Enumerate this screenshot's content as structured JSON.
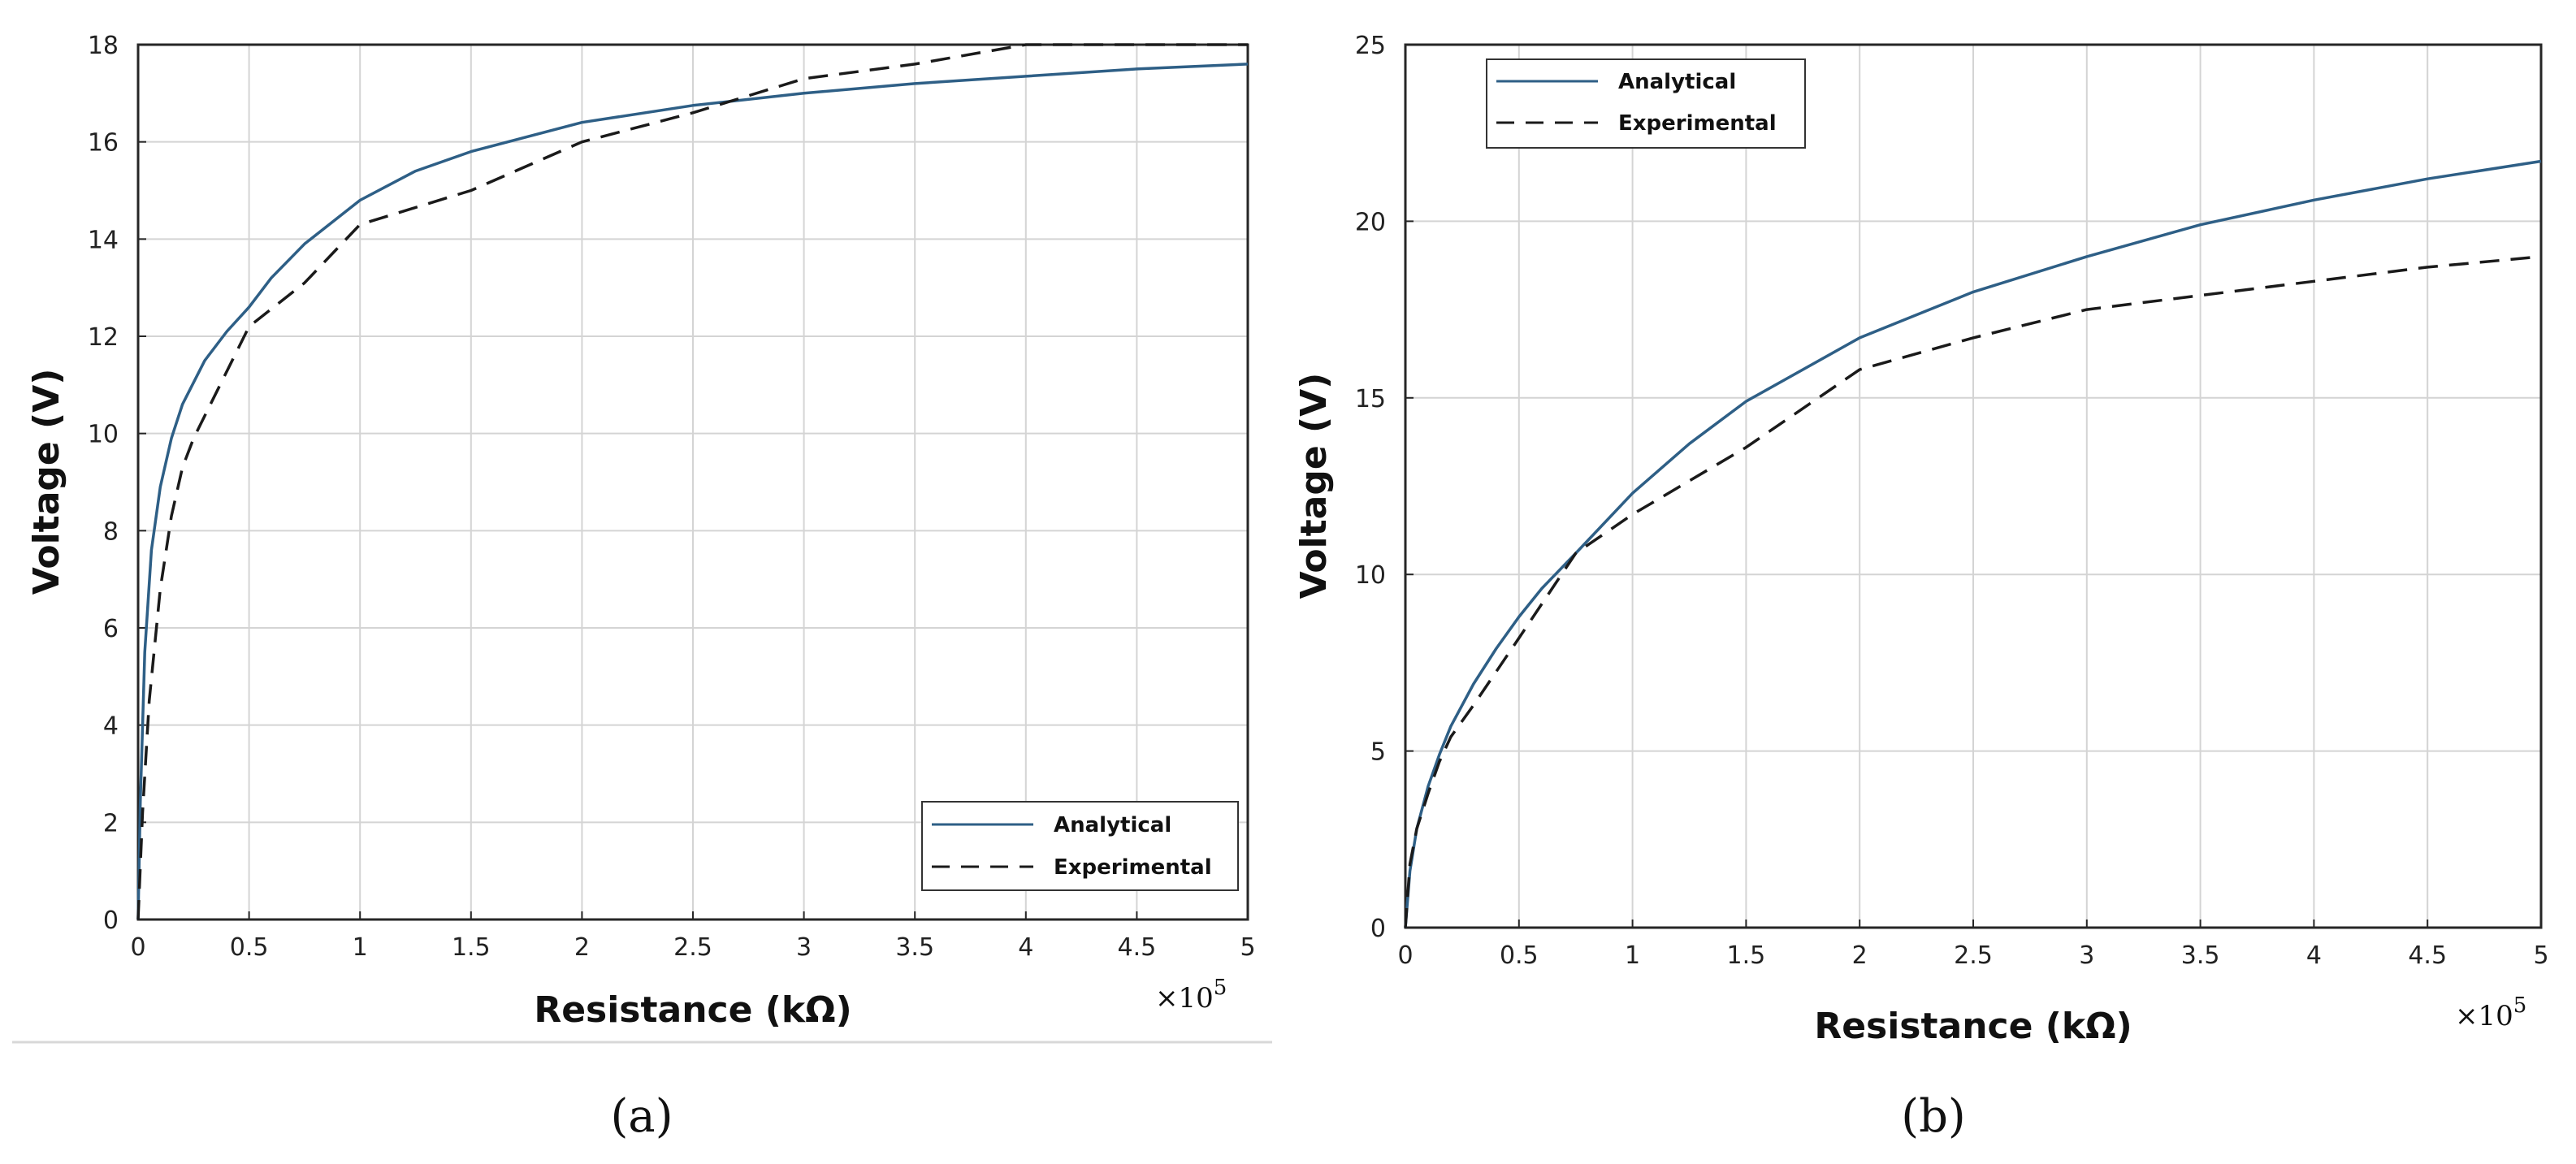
{
  "chart_data": [
    {
      "type": "line",
      "panel": "a",
      "caption": "(a)",
      "xlabel": "Resistance (kΩ)",
      "ylabel": "Voltage (V)",
      "x_multiplier": "×10",
      "x_exponent": "5",
      "xlim": [
        0,
        5
      ],
      "ylim": [
        0,
        18
      ],
      "xticks": [
        0,
        0.5,
        1,
        1.5,
        2,
        2.5,
        3,
        3.5,
        4,
        4.5,
        5
      ],
      "yticks": [
        0,
        2,
        4,
        6,
        8,
        10,
        12,
        14,
        16,
        18
      ],
      "grid": true,
      "legend_position": "bottom-right",
      "series": [
        {
          "name": "Analytical",
          "style": "solid",
          "color": "#2e5f86",
          "x": [
            0,
            0.01,
            0.03,
            0.06,
            0.1,
            0.15,
            0.2,
            0.3,
            0.4,
            0.5,
            0.6,
            0.75,
            1,
            1.25,
            1.5,
            2,
            2.5,
            3,
            3.5,
            4,
            4.5,
            5
          ],
          "y": [
            0,
            2.4,
            5.5,
            7.6,
            8.9,
            9.9,
            10.6,
            11.5,
            12.1,
            12.6,
            13.2,
            13.9,
            14.8,
            15.4,
            15.8,
            16.4,
            16.75,
            17.0,
            17.2,
            17.35,
            17.5,
            17.6
          ]
        },
        {
          "name": "Experimental",
          "style": "dashed",
          "color": "#1a1a1a",
          "x": [
            0,
            0.02,
            0.05,
            0.1,
            0.15,
            0.2,
            0.25,
            0.5,
            0.75,
            1,
            1.5,
            2,
            2.5,
            3,
            3.5,
            4,
            4.5,
            5
          ],
          "y": [
            0,
            2.2,
            4.5,
            6.8,
            8.3,
            9.3,
            9.9,
            12.2,
            13.1,
            14.3,
            15.0,
            16.0,
            16.6,
            17.3,
            17.6,
            18.0,
            18.0,
            18.0
          ]
        }
      ]
    },
    {
      "type": "line",
      "panel": "b",
      "caption": "(b)",
      "xlabel": "Resistance (kΩ)",
      "ylabel": "Voltage (V)",
      "x_multiplier": "×10",
      "x_exponent": "5",
      "xlim": [
        0,
        5
      ],
      "ylim": [
        0,
        25
      ],
      "xticks": [
        0,
        0.5,
        1,
        1.5,
        2,
        2.5,
        3,
        3.5,
        4,
        4.5,
        5
      ],
      "yticks": [
        0,
        5,
        10,
        15,
        20,
        25
      ],
      "grid": true,
      "legend_position": "top-left",
      "series": [
        {
          "name": "Analytical",
          "style": "solid",
          "color": "#2e5f86",
          "x": [
            0,
            0.02,
            0.05,
            0.1,
            0.15,
            0.2,
            0.3,
            0.4,
            0.5,
            0.6,
            0.75,
            1,
            1.25,
            1.5,
            2,
            2.5,
            3,
            3.5,
            4,
            4.5,
            5
          ],
          "y": [
            0,
            1.6,
            2.8,
            4.0,
            4.9,
            5.7,
            6.9,
            7.9,
            8.8,
            9.6,
            10.6,
            12.3,
            13.7,
            14.9,
            16.7,
            18.0,
            19.0,
            19.9,
            20.6,
            21.2,
            21.7
          ]
        },
        {
          "name": "Experimental",
          "style": "dashed",
          "color": "#1a1a1a",
          "x": [
            0,
            0.02,
            0.05,
            0.1,
            0.15,
            0.2,
            0.3,
            0.5,
            0.75,
            1,
            1.5,
            2,
            2.5,
            3,
            3.5,
            4,
            4.5,
            5
          ],
          "y": [
            0,
            1.8,
            2.8,
            3.8,
            4.7,
            5.4,
            6.3,
            8.2,
            10.6,
            11.7,
            13.6,
            15.8,
            16.7,
            17.5,
            17.9,
            18.3,
            18.7,
            19.0
          ]
        }
      ]
    }
  ]
}
